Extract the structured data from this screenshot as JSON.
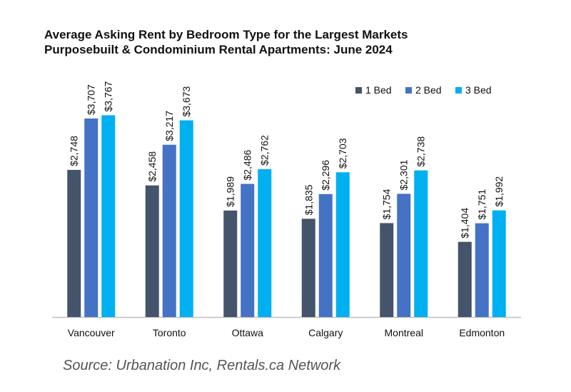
{
  "title_line1": "Average Asking Rent by Bedroom Type for the Largest Markets",
  "title_line2": "Purposebuilt & Condominium Rental Apartments: June 2024",
  "source": "Source: Urbanation Inc, Rentals.ca Network",
  "chart_data": {
    "type": "bar",
    "categories": [
      "Vancouver",
      "Toronto",
      "Ottawa",
      "Calgary",
      "Montreal",
      "Edmonton"
    ],
    "series": [
      {
        "name": "1 Bed",
        "color": "#44546a",
        "values": [
          2748,
          2458,
          1989,
          1835,
          1754,
          1404
        ],
        "labels": [
          "$2,748",
          "$2,458",
          "$1,989",
          "$1,835",
          "$1,754",
          "$1,404"
        ]
      },
      {
        "name": "2 Bed",
        "color": "#4472c4",
        "values": [
          3707,
          3217,
          2486,
          2296,
          2301,
          1751
        ],
        "labels": [
          "$3,707",
          "$3,217",
          "$2,486",
          "$2,296",
          "$2,301",
          "$1,751"
        ]
      },
      {
        "name": "3 Bed",
        "color": "#00b0f0",
        "values": [
          3767,
          3673,
          2762,
          2703,
          2738,
          1992
        ],
        "labels": [
          "$3,767",
          "$3,673",
          "$2,762",
          "$2,703",
          "$2,738",
          "$1,992"
        ]
      }
    ],
    "ylim": [
      0,
      4000
    ],
    "grid": false,
    "legend": "top-right",
    "data_labels": "vertical-above-bars"
  }
}
